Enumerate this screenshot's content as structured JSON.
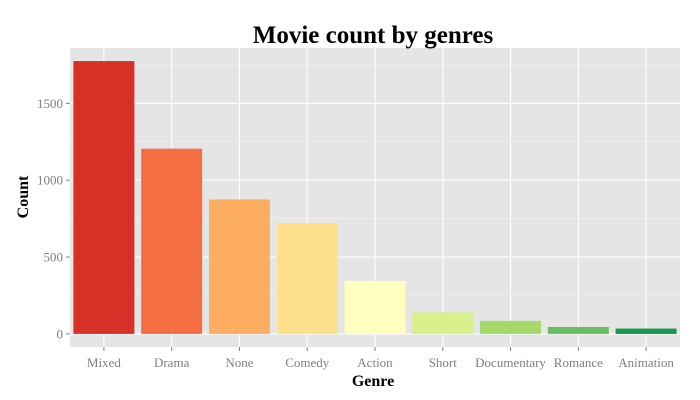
{
  "chart_data": {
    "type": "bar",
    "title": "Movie count by genres",
    "xlabel": "Genre",
    "ylabel": "Count",
    "categories": [
      "Mixed",
      "Drama",
      "None",
      "Comedy",
      "Action",
      "Short",
      "Documentary",
      "Romance",
      "Animation"
    ],
    "values": [
      1775,
      1205,
      875,
      720,
      345,
      140,
      85,
      45,
      35
    ],
    "colors": [
      "#d73027",
      "#f46d43",
      "#fdae61",
      "#fee08b",
      "#ffffbf",
      "#d9ef8b",
      "#a6d96a",
      "#66bd63",
      "#1a9850"
    ],
    "yticks": [
      0,
      500,
      1000,
      1500
    ],
    "ylim": [
      -85,
      1860
    ],
    "grid": true,
    "panel_background": "#e5e5e5",
    "grid_color": "#ffffff"
  }
}
